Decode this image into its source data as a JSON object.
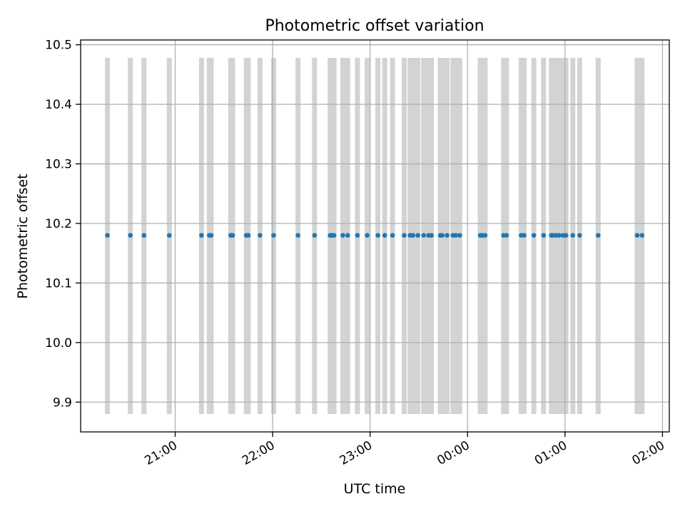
{
  "chart_data": {
    "type": "scatter",
    "title": "Photometric offset variation",
    "xlabel": "UTC time",
    "ylabel": "Photometric offset",
    "x_unit": "hour",
    "xlim": [
      20.03,
      26.07
    ],
    "ylim": [
      9.85,
      10.508
    ],
    "y_ticks": [
      9.9,
      10.0,
      10.1,
      10.2,
      10.3,
      10.4,
      10.5
    ],
    "y_tick_labels": [
      "9.9",
      "10.0",
      "10.1",
      "10.2",
      "10.3",
      "10.4",
      "10.5"
    ],
    "x_ticks": [
      21,
      22,
      23,
      24,
      25,
      26
    ],
    "x_tick_labels": [
      "21:00",
      "22:00",
      "23:00",
      "00:00",
      "01:00",
      "02:00"
    ],
    "grid": true,
    "point_color": "#1f77b4",
    "span_color": "#d3d3d3",
    "span_ymin": 9.88,
    "span_ymax": 10.478,
    "y_value": 10.18,
    "x": [
      20.305,
      20.54,
      20.68,
      20.94,
      21.27,
      21.35,
      21.37,
      21.57,
      21.59,
      21.73,
      21.75,
      21.87,
      22.01,
      22.26,
      22.43,
      22.59,
      22.61,
      22.63,
      22.72,
      22.77,
      22.87,
      22.97,
      23.08,
      23.15,
      23.23,
      23.35,
      23.41,
      23.44,
      23.49,
      23.55,
      23.6,
      23.63,
      23.72,
      23.74,
      23.79,
      23.85,
      23.88,
      23.92,
      24.13,
      24.15,
      24.18,
      24.37,
      24.4,
      24.55,
      24.58,
      24.68,
      24.78,
      24.86,
      24.88,
      24.91,
      24.94,
      24.98,
      25.01,
      25.08,
      25.15,
      25.34,
      25.74,
      25.79
    ]
  }
}
